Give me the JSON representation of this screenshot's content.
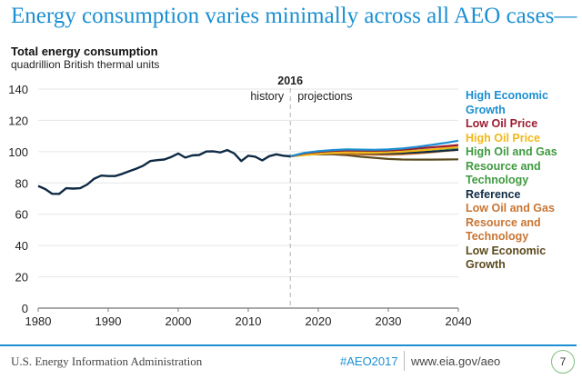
{
  "slide": {
    "title": "Energy consumption varies minimally across all AEO cases—"
  },
  "footer": {
    "organization": "U.S. Energy Information Administration",
    "hashtag": "#AEO2017",
    "url": "www.eia.gov/aeo",
    "page_number": "7"
  },
  "chart_data": {
    "type": "line",
    "title": "Total energy consumption",
    "subtitle": "quadrillion British thermal units",
    "xlabel": "",
    "ylabel": "",
    "xlim": [
      1980,
      2040
    ],
    "ylim": [
      0,
      140
    ],
    "x_ticks": [
      "1980",
      "1990",
      "2000",
      "2010",
      "2020",
      "2030",
      "2040"
    ],
    "y_ticks": [
      "0",
      "20",
      "40",
      "60",
      "80",
      "100",
      "120",
      "140"
    ],
    "grid": "horizontal",
    "divider": {
      "year": 2016,
      "label": "2016",
      "left_label": "history",
      "right_label": "projections"
    },
    "legend_placement": "right",
    "history": {
      "name": "History",
      "color": "#0f2a44",
      "x": [
        1980,
        1981,
        1982,
        1983,
        1984,
        1985,
        1986,
        1987,
        1988,
        1989,
        1990,
        1991,
        1992,
        1993,
        1994,
        1995,
        1996,
        1997,
        1998,
        1999,
        2000,
        2001,
        2002,
        2003,
        2004,
        2005,
        2006,
        2007,
        2008,
        2009,
        2010,
        2011,
        2012,
        2013,
        2014,
        2015,
        2016
      ],
      "y": [
        78.1,
        76.1,
        73.1,
        73.0,
        76.6,
        76.4,
        76.6,
        79.0,
        82.7,
        84.7,
        84.4,
        84.4,
        85.8,
        87.5,
        89.1,
        91.0,
        94.0,
        94.6,
        95.0,
        96.6,
        98.8,
        96.2,
        97.6,
        97.9,
        100.1,
        100.2,
        99.5,
        101.0,
        98.9,
        94.0,
        97.4,
        96.8,
        94.4,
        97.1,
        98.3,
        97.4,
        97.0
      ]
    },
    "projection_x": [
      2016,
      2018,
      2020,
      2022,
      2024,
      2026,
      2028,
      2030,
      2032,
      2034,
      2036,
      2038,
      2040
    ],
    "series": [
      {
        "name": "Low Economic Growth",
        "color": "#5c4a1e",
        "values": [
          97.0,
          98.0,
          98.4,
          98.3,
          97.8,
          96.8,
          96.0,
          95.3,
          95.0,
          94.9,
          94.9,
          95.0,
          95.1
        ]
      },
      {
        "name": "Low Oil and Gas Resource and Technology",
        "color": "#c87533",
        "values": [
          97.0,
          98.2,
          98.8,
          99.0,
          98.8,
          98.3,
          98.0,
          98.0,
          98.3,
          98.8,
          99.5,
          100.4,
          101.3
        ]
      },
      {
        "name": "Reference",
        "color": "#0f2a44",
        "values": [
          97.0,
          98.6,
          99.3,
          99.7,
          99.6,
          99.2,
          98.9,
          98.9,
          99.1,
          99.5,
          100.0,
          100.6,
          101.2
        ]
      },
      {
        "name": "High Oil and Gas Resource and Technology",
        "color": "#3f9a3f",
        "values": [
          97.0,
          98.9,
          99.8,
          100.4,
          100.6,
          100.3,
          100.0,
          100.0,
          100.3,
          100.7,
          101.3,
          101.9,
          102.6
        ]
      },
      {
        "name": "High Oil Price",
        "color": "#f2b818",
        "values": [
          97.0,
          97.8,
          98.6,
          99.2,
          99.5,
          99.4,
          99.3,
          99.5,
          100.0,
          100.6,
          101.3,
          102.1,
          103.0
        ]
      },
      {
        "name": "Low Oil Price",
        "color": "#9b1c31",
        "values": [
          97.0,
          98.9,
          99.9,
          100.5,
          100.8,
          100.7,
          100.6,
          100.8,
          101.3,
          102.0,
          102.7,
          103.4,
          104.2
        ]
      },
      {
        "name": "High Economic Growth",
        "color": "#1b8fd2",
        "values": [
          97.0,
          99.2,
          100.3,
          101.0,
          101.4,
          101.3,
          101.2,
          101.4,
          102.0,
          103.0,
          104.2,
          105.5,
          107.0
        ]
      }
    ],
    "legend": [
      {
        "label": "High Economic Growth",
        "color": "#1b8fd2"
      },
      {
        "label": "Low Oil Price",
        "color": "#9b1c31"
      },
      {
        "label": "High Oil Price",
        "color": "#f2b818"
      },
      {
        "label": "High Oil and Gas Resource and Technology",
        "color": "#3f9a3f"
      },
      {
        "label": "Reference",
        "color": "#0f2a44"
      },
      {
        "label": "Low Oil and Gas Resource and Technology",
        "color": "#c87533"
      },
      {
        "label": "Low Economic Growth",
        "color": "#5c4a1e"
      }
    ]
  }
}
